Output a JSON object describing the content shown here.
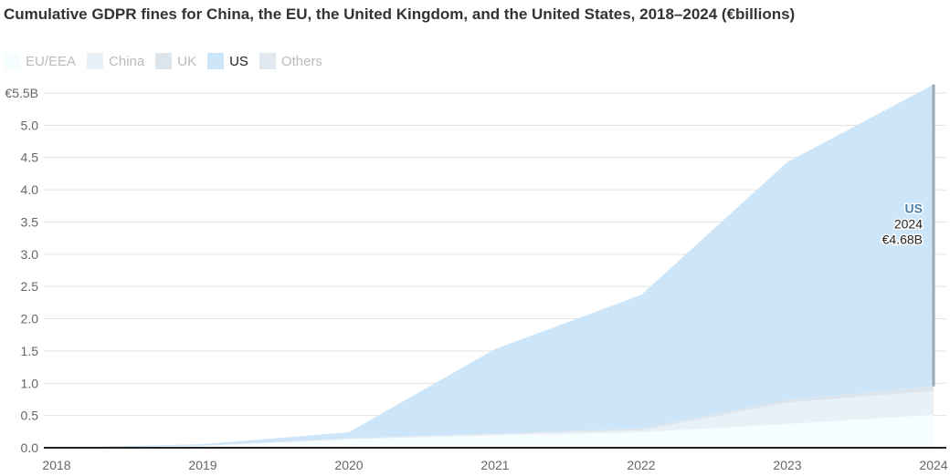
{
  "title": "Cumulative GDPR fines for China, the EU, the United Kingdom, and the United States, 2018–2024 (€billions)",
  "chart_data": {
    "type": "area",
    "stacked": true,
    "x": [
      "2018",
      "2019",
      "2020",
      "2021",
      "2022",
      "2023",
      "2024"
    ],
    "series": [
      {
        "name": "EU/EEA",
        "color": "#f5fdff",
        "values": [
          0,
          0.03,
          0.13,
          0.19,
          0.24,
          0.37,
          0.51
        ]
      },
      {
        "name": "China",
        "color": "#e8f0f8",
        "values": [
          0,
          0,
          0.01,
          0.02,
          0.03,
          0.33,
          0.37
        ]
      },
      {
        "name": "UK",
        "color": "#dde5ec",
        "values": [
          0,
          0.005,
          0.01,
          0.01,
          0.03,
          0.04,
          0.07
        ]
      },
      {
        "name": "US",
        "color": "#cce5f8",
        "values": [
          0,
          0.02,
          0.09,
          1.31,
          2.07,
          3.69,
          4.68
        ]
      },
      {
        "name": "Others",
        "color": "#e2e8f0",
        "values": [
          0,
          0,
          0,
          0,
          0,
          0,
          0
        ]
      }
    ],
    "highlighted": "US",
    "yticks": [
      "0.0",
      "0.5",
      "1.0",
      "1.5",
      "2.0",
      "2.5",
      "3.0",
      "3.5",
      "4.0",
      "4.5",
      "5.0",
      "€5.5B"
    ],
    "ylim": [
      0,
      5.5
    ],
    "grid": true,
    "legend": "top-left",
    "annotation": {
      "series": "US",
      "year": "2024",
      "value": "€4.68B",
      "color": "#4a7fa8"
    }
  }
}
